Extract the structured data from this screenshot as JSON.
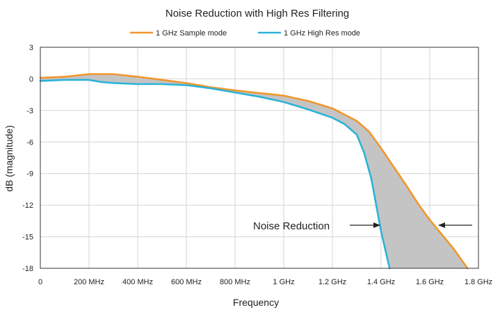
{
  "chart_data": {
    "type": "line",
    "title": "Noise Reduction with High Res Filtering",
    "xlabel": "Frequency",
    "ylabel": "dB (magnitude)",
    "xlim": [
      0,
      1.8
    ],
    "ylim": [
      -18,
      3
    ],
    "x_ticks": [
      {
        "value": 0,
        "label": "0"
      },
      {
        "value": 0.2,
        "label": "200 MHz"
      },
      {
        "value": 0.4,
        "label": "400 MHz"
      },
      {
        "value": 0.6,
        "label": "600 MHz"
      },
      {
        "value": 0.8,
        "label": "800 MHz"
      },
      {
        "value": 1.0,
        "label": "1 GHz"
      },
      {
        "value": 1.2,
        "label": "1.2 GHz"
      },
      {
        "value": 1.4,
        "label": "1.4 GHz"
      },
      {
        "value": 1.6,
        "label": "1.6 GHz"
      },
      {
        "value": 1.8,
        "label": "1.8 GHz"
      }
    ],
    "y_ticks": [
      3,
      0,
      -3,
      -6,
      -9,
      -12,
      -15,
      -18
    ],
    "grid": true,
    "legend_position": "top",
    "series": [
      {
        "name": "1 GHz Sample mode",
        "color": "#f0962c",
        "points": [
          [
            0,
            0.1
          ],
          [
            0.1,
            0.2
          ],
          [
            0.2,
            0.45
          ],
          [
            0.3,
            0.45
          ],
          [
            0.4,
            0.2
          ],
          [
            0.5,
            -0.1
          ],
          [
            0.6,
            -0.4
          ],
          [
            0.7,
            -0.8
          ],
          [
            0.8,
            -1.1
          ],
          [
            0.9,
            -1.35
          ],
          [
            1.0,
            -1.6
          ],
          [
            1.1,
            -2.1
          ],
          [
            1.2,
            -2.8
          ],
          [
            1.3,
            -4.0
          ],
          [
            1.35,
            -5.0
          ],
          [
            1.4,
            -6.6
          ],
          [
            1.45,
            -8.3
          ],
          [
            1.5,
            -10.0
          ],
          [
            1.55,
            -11.8
          ],
          [
            1.6,
            -13.4
          ],
          [
            1.65,
            -14.8
          ],
          [
            1.7,
            -16.2
          ],
          [
            1.755,
            -18.0
          ]
        ]
      },
      {
        "name": "1 GHz High Res mode",
        "color": "#2bb3d6",
        "points": [
          [
            0,
            -0.2
          ],
          [
            0.1,
            -0.1
          ],
          [
            0.2,
            -0.1
          ],
          [
            0.25,
            -0.3
          ],
          [
            0.3,
            -0.4
          ],
          [
            0.4,
            -0.5
          ],
          [
            0.5,
            -0.5
          ],
          [
            0.6,
            -0.6
          ],
          [
            0.7,
            -0.9
          ],
          [
            0.8,
            -1.3
          ],
          [
            0.9,
            -1.7
          ],
          [
            1.0,
            -2.2
          ],
          [
            1.1,
            -2.9
          ],
          [
            1.2,
            -3.7
          ],
          [
            1.25,
            -4.3
          ],
          [
            1.3,
            -5.3
          ],
          [
            1.33,
            -7.0
          ],
          [
            1.36,
            -9.5
          ],
          [
            1.38,
            -12.0
          ],
          [
            1.4,
            -14.5
          ],
          [
            1.42,
            -16.5
          ],
          [
            1.435,
            -18.0
          ]
        ]
      }
    ],
    "shaded_region": {
      "between": [
        "1 GHz Sample mode",
        "1 GHz High Res mode"
      ],
      "color": "#c4c4c4"
    },
    "annotation": {
      "text": "Noise Reduction",
      "arrows_to": [
        "1 GHz High Res mode",
        "1 GHz Sample mode"
      ],
      "y": -14
    }
  }
}
